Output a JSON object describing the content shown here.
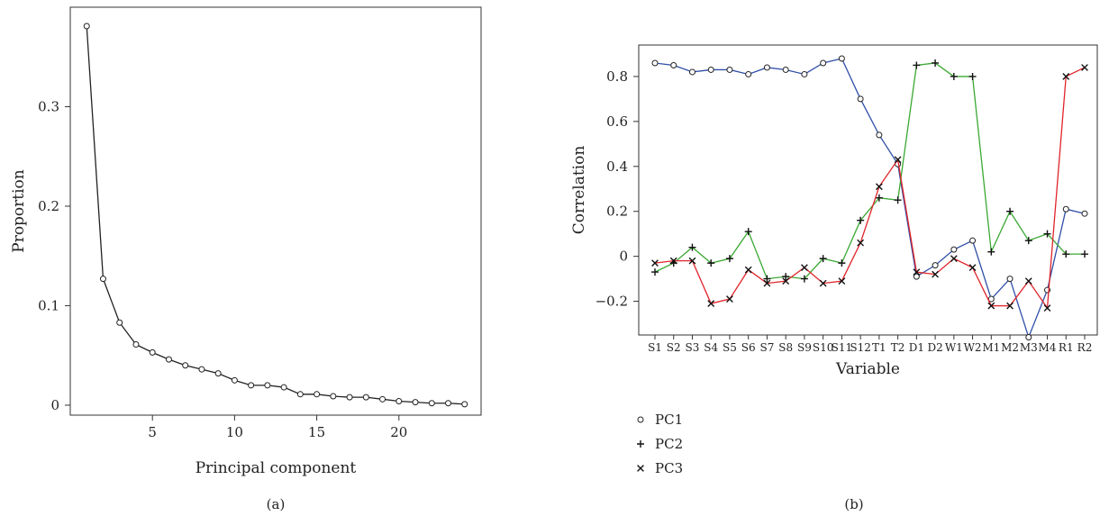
{
  "chart_data": [
    {
      "panel_label": "(a)",
      "type": "line",
      "xlabel": "Principal component",
      "ylabel": "Proportion",
      "xlim": [
        0,
        25
      ],
      "ylim": [
        -0.01,
        0.4
      ],
      "xticks": [
        5,
        10,
        15,
        20
      ],
      "yticks": [
        0,
        0.1,
        0.2,
        0.3
      ],
      "ytick_labels": [
        "0",
        "0.1",
        "0.2",
        "0.3"
      ],
      "x": [
        1,
        2,
        3,
        4,
        5,
        6,
        7,
        8,
        9,
        10,
        11,
        12,
        13,
        14,
        15,
        16,
        17,
        18,
        19,
        20,
        21,
        22,
        23,
        24
      ],
      "values": [
        0.381,
        0.127,
        0.083,
        0.061,
        0.053,
        0.046,
        0.04,
        0.036,
        0.032,
        0.025,
        0.02,
        0.02,
        0.018,
        0.011,
        0.011,
        0.009,
        0.008,
        0.008,
        0.006,
        0.004,
        0.003,
        0.002,
        0.002,
        0.001
      ],
      "color": "#222222",
      "marker": "circle"
    },
    {
      "panel_label": "(b)",
      "type": "line",
      "xlabel": "Variable",
      "ylabel": "Correlation",
      "ylim": [
        -0.35,
        0.94
      ],
      "yticks": [
        -0.2,
        0,
        0.2,
        0.4,
        0.6,
        0.8
      ],
      "ytick_labels": [
        "−0.2",
        "0",
        "0.2",
        "0.4",
        "0.6",
        "0.8"
      ],
      "categories": [
        "S1",
        "S2",
        "S3",
        "S4",
        "S5",
        "S6",
        "S7",
        "S8",
        "S9",
        "S10",
        "S11",
        "S12",
        "T1",
        "T2",
        "D1",
        "D2",
        "W1",
        "W2",
        "M1",
        "M2",
        "M3",
        "M4",
        "R1",
        "R2"
      ],
      "series": [
        {
          "name": "PC1",
          "marker": "circle",
          "color": "#2f4fa8",
          "values": [
            0.86,
            0.85,
            0.82,
            0.83,
            0.83,
            0.81,
            0.84,
            0.83,
            0.81,
            0.86,
            0.88,
            0.7,
            0.54,
            0.41,
            -0.09,
            -0.04,
            0.03,
            0.07,
            -0.19,
            -0.1,
            -0.36,
            -0.15,
            0.21,
            0.19
          ]
        },
        {
          "name": "PC2",
          "marker": "plus",
          "color": "#3aa832",
          "values": [
            -0.07,
            -0.03,
            0.04,
            -0.03,
            -0.01,
            0.11,
            -0.1,
            -0.09,
            -0.1,
            -0.01,
            -0.03,
            0.16,
            0.26,
            0.25,
            0.85,
            0.86,
            0.8,
            0.8,
            0.02,
            0.2,
            0.07,
            0.1,
            0.01,
            0.01
          ]
        },
        {
          "name": "PC3",
          "marker": "cross",
          "color": "#e0242a",
          "values": [
            -0.03,
            -0.02,
            -0.02,
            -0.21,
            -0.19,
            -0.06,
            -0.12,
            -0.11,
            -0.05,
            -0.12,
            -0.11,
            0.06,
            0.31,
            0.43,
            -0.07,
            -0.08,
            -0.01,
            -0.05,
            -0.22,
            -0.22,
            -0.11,
            -0.23,
            0.8,
            0.84
          ]
        }
      ],
      "legend": {
        "placement": "below-left",
        "markers_black": true
      }
    }
  ]
}
